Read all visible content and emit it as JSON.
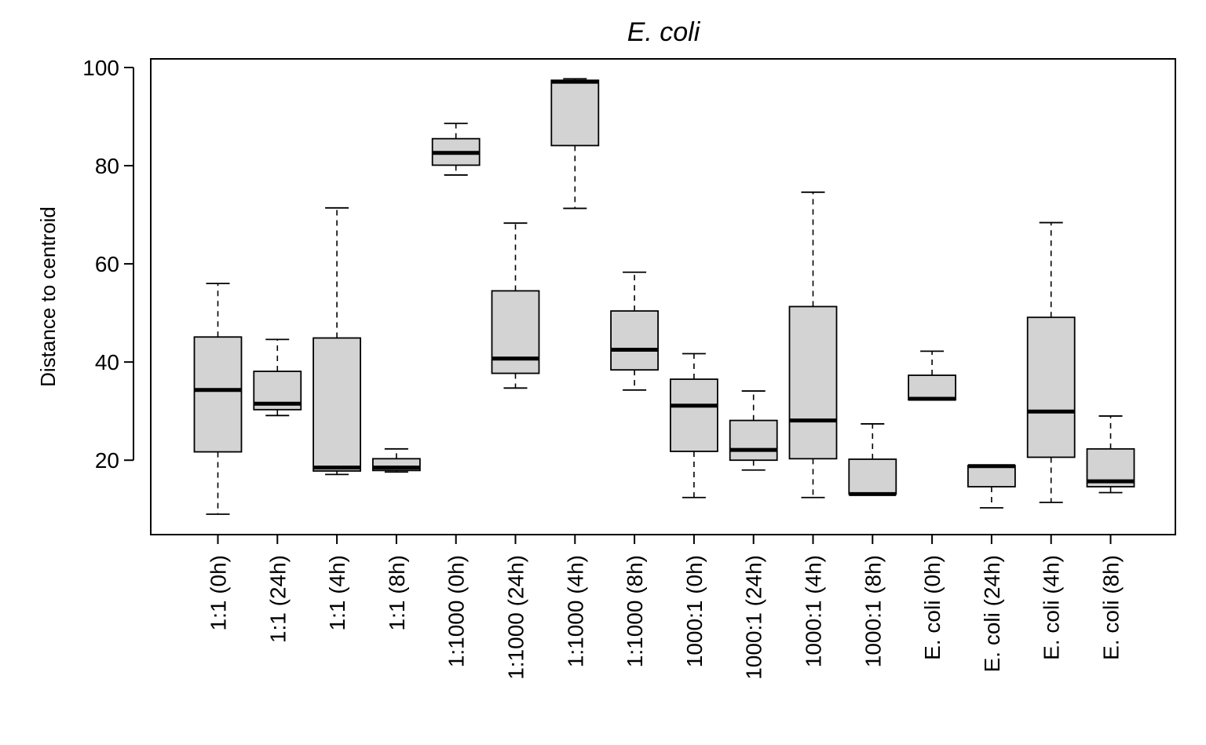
{
  "chart_data": {
    "type": "boxplot",
    "title": "E. coli",
    "xlabel": "",
    "ylabel": "Distance to centroid",
    "ylim": [
      5,
      103
    ],
    "yticks": [
      20,
      40,
      60,
      80,
      100
    ],
    "grid": false,
    "legend": "none",
    "box_fill": "#d3d3d3",
    "categories": [
      "1:1 (0h)",
      "1:1 (24h)",
      "1:1 (4h)",
      "1:1 (8h)",
      "1:1000 (0h)",
      "1:1000 (24h)",
      "1:1000 (4h)",
      "1:1000 (8h)",
      "1000:1 (0h)",
      "1000:1 (24h)",
      "1000:1 (4h)",
      "1000:1 (8h)",
      "E. coli (0h)",
      "E. coli (24h)",
      "E. coli (4h)",
      "E. coli (8h)"
    ],
    "boxes": [
      {
        "min": 9,
        "q1": 21.7,
        "median": 34.3,
        "q3": 45.1,
        "max": 56
      },
      {
        "min": 29.1,
        "q1": 30.3,
        "median": 31.5,
        "q3": 38.1,
        "max": 44.6
      },
      {
        "min": 17.1,
        "q1": 17.8,
        "median": 18.5,
        "q3": 44.9,
        "max": 71.4
      },
      {
        "min": 17.6,
        "q1": 17.9,
        "median": 18.5,
        "q3": 20.3,
        "max": 22.3
      },
      {
        "min": 78.1,
        "q1": 80.1,
        "median": 82.6,
        "q3": 85.5,
        "max": 88.6
      },
      {
        "min": 34.7,
        "q1": 37.7,
        "median": 40.7,
        "q3": 54.5,
        "max": 68.3
      },
      {
        "min": 71.3,
        "q1": 84.1,
        "median": 97.1,
        "q3": 97.4,
        "max": 97.7
      },
      {
        "min": 34.3,
        "q1": 38.4,
        "median": 42.5,
        "q3": 50.4,
        "max": 58.3
      },
      {
        "min": 12.4,
        "q1": 21.8,
        "median": 31.1,
        "q3": 36.5,
        "max": 41.7
      },
      {
        "min": 18,
        "q1": 20,
        "median": 22.1,
        "q3": 28.1,
        "max": 34.1
      },
      {
        "min": 12.4,
        "q1": 20.3,
        "median": 28.1,
        "q3": 51.3,
        "max": 74.6
      },
      {
        "min": 13.1,
        "q1": 13.1,
        "median": 13.1,
        "q3": 20.2,
        "max": 27.4
      },
      {
        "min": 32.3,
        "q1": 32.3,
        "median": 32.5,
        "q3": 37.3,
        "max": 42.2
      },
      {
        "min": 10.3,
        "q1": 14.6,
        "median": 18.8,
        "q3": 18.9,
        "max": 18.9
      },
      {
        "min": 11.4,
        "q1": 20.6,
        "median": 29.9,
        "q3": 49.1,
        "max": 68.4
      },
      {
        "min": 13.4,
        "q1": 14.6,
        "median": 15.7,
        "q3": 22.3,
        "max": 29
      }
    ]
  }
}
